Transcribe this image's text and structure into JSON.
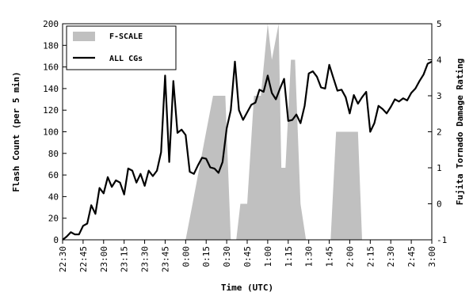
{
  "chart_data": {
    "type": "line",
    "title": "",
    "xlabel": "Time (UTC)",
    "ylabel": "Flash Count (per 5 min)",
    "y2label": "Fujita Tornado Damage Rating",
    "ylim": [
      0,
      200
    ],
    "y2lim": [
      -1,
      5
    ],
    "x_ticks": [
      "22:30",
      "22:45",
      "23:00",
      "23:15",
      "23:30",
      "23:45",
      "0:00",
      "0:15",
      "0:30",
      "0:45",
      "1:00",
      "1:15",
      "1:30",
      "1:45",
      "2:00",
      "2:15",
      "2:30",
      "2:45",
      "3:00"
    ],
    "y_ticks": [
      0,
      20,
      40,
      60,
      80,
      100,
      120,
      140,
      160,
      180,
      200
    ],
    "y2_ticks": [
      -1,
      0,
      1,
      2,
      3,
      4,
      5
    ],
    "grid": false,
    "legend_position": "top-left",
    "colors": {
      "fscale": "#c0c0c0",
      "cg": "#000000"
    },
    "series": [
      {
        "name": "ALL CGs",
        "type": "line",
        "axis": "left",
        "x": [
          "22:30",
          "22:33",
          "22:36",
          "22:39",
          "22:42",
          "22:45",
          "22:48",
          "22:51",
          "22:54",
          "22:57",
          "23:00",
          "23:03",
          "23:06",
          "23:09",
          "23:12",
          "23:15",
          "23:18",
          "23:21",
          "23:24",
          "23:27",
          "23:30",
          "23:33",
          "23:36",
          "23:39",
          "23:42",
          "23:45",
          "23:48",
          "23:51",
          "23:54",
          "23:57",
          "0:00",
          "0:03",
          "0:06",
          "0:09",
          "0:12",
          "0:15",
          "0:18",
          "0:21",
          "0:24",
          "0:27",
          "0:30",
          "0:33",
          "0:36",
          "0:39",
          "0:42",
          "0:45",
          "0:48",
          "0:51",
          "0:54",
          "0:57",
          "1:00",
          "1:03",
          "1:06",
          "1:09",
          "1:12",
          "1:15",
          "1:18",
          "1:21",
          "1:24",
          "1:27",
          "1:30",
          "1:33",
          "1:36",
          "1:39",
          "1:42",
          "1:45",
          "1:48",
          "1:51",
          "1:54",
          "1:57",
          "2:00",
          "2:03",
          "2:06",
          "2:09",
          "2:12",
          "2:15",
          "2:18",
          "2:21",
          "2:24",
          "2:27",
          "2:30",
          "2:33",
          "2:36",
          "2:39",
          "2:42",
          "2:45",
          "2:48",
          "2:51",
          "2:54",
          "2:57",
          "3:00"
        ],
        "values": [
          0,
          3,
          7,
          5,
          5,
          13,
          15,
          32,
          24,
          48,
          43,
          58,
          49,
          55,
          53,
          42,
          66,
          64,
          53,
          61,
          50,
          64,
          59,
          64,
          81,
          152,
          72,
          147,
          99,
          102,
          97,
          63,
          61,
          69,
          76,
          75,
          67,
          66,
          62,
          72,
          103,
          120,
          165,
          120,
          111,
          118,
          125,
          127,
          139,
          137,
          152,
          136,
          130,
          140,
          149,
          110,
          111,
          116,
          108,
          124,
          154,
          156,
          151,
          141,
          140,
          162,
          150,
          138,
          139,
          132,
          117,
          134,
          126,
          132,
          137,
          100,
          108,
          124,
          121,
          117,
          123,
          130,
          128,
          131,
          129,
          136,
          140,
          147,
          153,
          163,
          165
        ]
      },
      {
        "name": "F-SCALE",
        "type": "area",
        "axis": "right",
        "x": [
          "0:00",
          "0:05",
          "0:10",
          "0:15",
          "0:20",
          "0:25",
          "0:29",
          "0:33",
          "0:37",
          "0:40",
          "0:45",
          "0:50",
          "0:55",
          "1:00",
          "1:03",
          "1:08",
          "1:10",
          "1:13",
          "1:17",
          "1:20",
          "1:24",
          "1:28",
          "1:31",
          "1:34",
          "1:37",
          "1:46",
          "1:50",
          "1:54",
          "1:57",
          "2:00",
          "2:03",
          "2:06",
          "2:09",
          "2:13"
        ],
        "values": [
          -1,
          0,
          1,
          2,
          3,
          3,
          3,
          -1,
          -1,
          0,
          0,
          3,
          3,
          5,
          4,
          5,
          1,
          1,
          4,
          4,
          0,
          -1,
          -1,
          -1,
          -1,
          -1,
          2,
          2,
          2,
          2,
          2,
          2,
          -1,
          -1
        ]
      }
    ]
  }
}
